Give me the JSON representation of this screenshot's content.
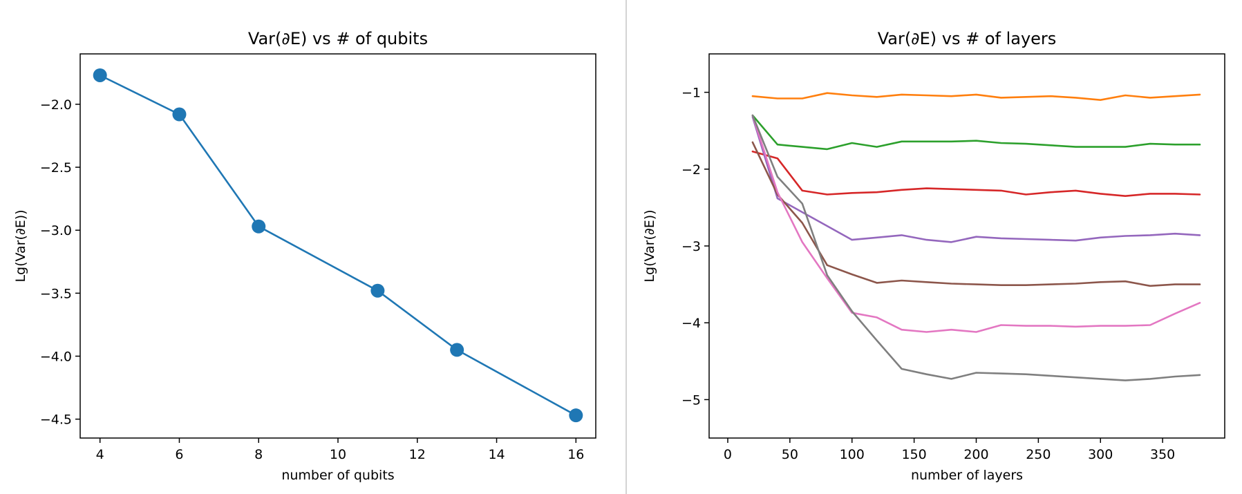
{
  "chart_data": [
    {
      "type": "line",
      "title": "Var(∂E) vs # of qubits",
      "xlabel": "number of qubits",
      "ylabel": "Lg(Var(∂E))",
      "xlim": [
        3.5,
        16.5
      ],
      "ylim": [
        -4.65,
        -1.6
      ],
      "xticks": [
        4,
        6,
        8,
        10,
        12,
        14,
        16
      ],
      "yticks": [
        -2.0,
        -2.5,
        -3.0,
        -3.5,
        -4.0,
        -4.5
      ],
      "markers": true,
      "grid": false,
      "series": [
        {
          "color": "#1f77b4",
          "x": [
            4,
            6,
            8,
            11,
            13,
            16
          ],
          "y": [
            -1.77,
            -2.08,
            -2.97,
            -3.48,
            -3.95,
            -4.47
          ]
        }
      ]
    },
    {
      "type": "line",
      "title": "Var(∂E) vs # of layers",
      "xlabel": "number of layers",
      "ylabel": "Lg(Var(∂E))",
      "xlim": [
        -15,
        400
      ],
      "ylim": [
        -5.5,
        -0.5
      ],
      "xticks": [
        0,
        50,
        100,
        150,
        200,
        250,
        300,
        350
      ],
      "yticks": [
        -1,
        -2,
        -3,
        -4,
        -5
      ],
      "markers": false,
      "grid": false,
      "x": [
        20,
        40,
        60,
        80,
        100,
        120,
        140,
        160,
        180,
        200,
        220,
        240,
        260,
        280,
        300,
        320,
        340,
        360,
        380
      ],
      "series": [
        {
          "color": "#ff7f0e",
          "y": [
            -1.05,
            -1.08,
            -1.08,
            -1.01,
            -1.04,
            -1.06,
            -1.03,
            -1.04,
            -1.05,
            -1.03,
            -1.07,
            -1.06,
            -1.05,
            -1.07,
            -1.1,
            -1.04,
            -1.07,
            -1.05,
            -1.03
          ]
        },
        {
          "color": "#2ca02c",
          "y": [
            -1.3,
            -1.68,
            -1.71,
            -1.74,
            -1.66,
            -1.71,
            -1.64,
            -1.64,
            -1.64,
            -1.63,
            -1.66,
            -1.67,
            -1.69,
            -1.71,
            -1.71,
            -1.71,
            -1.67,
            -1.68,
            -1.68
          ]
        },
        {
          "color": "#d62728",
          "y": [
            -1.77,
            -1.86,
            -2.28,
            -2.33,
            -2.31,
            -2.3,
            -2.27,
            -2.25,
            -2.26,
            -2.27,
            -2.28,
            -2.33,
            -2.3,
            -2.28,
            -2.32,
            -2.35,
            -2.32,
            -2.32,
            -2.33
          ]
        },
        {
          "color": "#9467bd",
          "y": [
            -1.32,
            -2.38,
            -2.56,
            -2.74,
            -2.92,
            -2.89,
            -2.86,
            -2.92,
            -2.95,
            -2.88,
            -2.9,
            -2.91,
            -2.92,
            -2.93,
            -2.89,
            -2.87,
            -2.86,
            -2.84,
            -2.86
          ]
        },
        {
          "color": "#8c564b",
          "y": [
            -1.65,
            -2.33,
            -2.7,
            -3.25,
            -3.37,
            -3.48,
            -3.45,
            -3.47,
            -3.49,
            -3.5,
            -3.51,
            -3.51,
            -3.5,
            -3.49,
            -3.47,
            -3.46,
            -3.52,
            -3.5,
            -3.5
          ]
        },
        {
          "color": "#e377c2",
          "y": [
            -1.3,
            -2.3,
            -2.95,
            -3.42,
            -3.87,
            -3.93,
            -4.09,
            -4.12,
            -4.09,
            -4.12,
            -4.03,
            -4.04,
            -4.04,
            -4.05,
            -4.04,
            -4.04,
            -4.03,
            -3.88,
            -3.74
          ]
        },
        {
          "color": "#7f7f7f",
          "y": [
            -1.3,
            -2.1,
            -2.45,
            -3.38,
            -3.85,
            -4.23,
            -4.6,
            -4.67,
            -4.73,
            -4.65,
            -4.66,
            -4.67,
            -4.69,
            -4.71,
            -4.73,
            -4.75,
            -4.73,
            -4.7,
            -4.68
          ]
        }
      ]
    }
  ]
}
